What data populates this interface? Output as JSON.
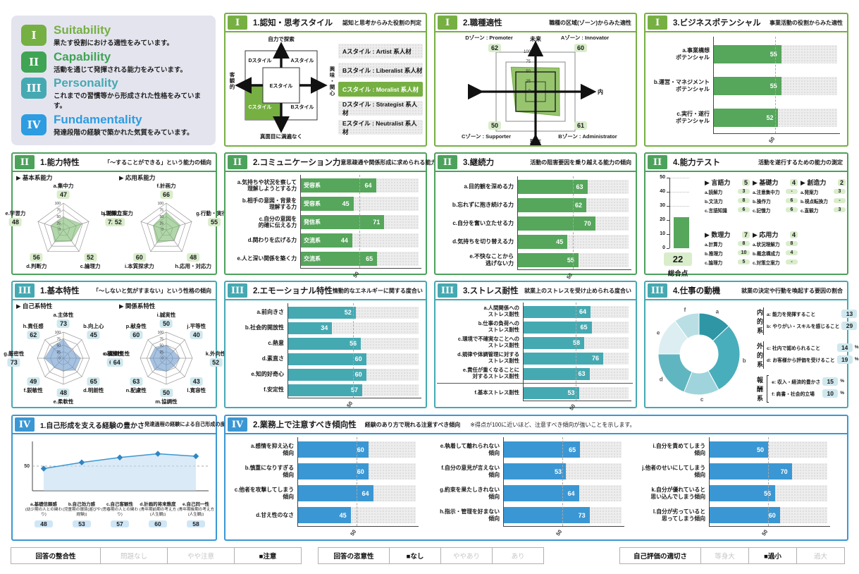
{
  "colors": {
    "cat1": "#76b043",
    "cat2": "#4ca25b",
    "cat3": "#45a9b2",
    "cat4": "#3b97d3",
    "radar_green": "rgba(125,186,113,0.6)",
    "radar_blue": "rgba(108,154,204,0.6)",
    "zone_fill": "#8cbf5e",
    "bar_green": "#56a65c",
    "bar_teal": "#45a9b2",
    "bar_blue": "#3b97d3"
  },
  "legend": {
    "items": [
      {
        "numeral": "I",
        "title": "Suitability",
        "desc": "果たす役割における適性をみています。",
        "color": "#76b043"
      },
      {
        "numeral": "II",
        "title": "Capability",
        "desc": "活動を通じて発揮される能力をみています。",
        "color": "#3fa454"
      },
      {
        "numeral": "III",
        "title": "Personality",
        "desc": "これまでの習慣等から形成された性格をみています。",
        "color": "#45a9b2"
      },
      {
        "numeral": "IV",
        "title": "Fundamentality",
        "desc": "発達段階の経験で築かれた気質をみています。",
        "color": "#2d9ce0"
      }
    ]
  },
  "panels": {
    "i1": {
      "numeral": "I",
      "title": "1.認知・思考スタイル",
      "subtitle": "認知と思考からみた役割の判定",
      "map": {
        "axis_top": "自力で探索",
        "axis_bottom": "真面目に満遍なく",
        "axis_left": "客観的",
        "axis_right": "興味・関心",
        "q_top_left": "Dスタイル",
        "q_top_right": "Aスタイル",
        "q_center": "Eスタイル",
        "q_bottom_left": "Cスタイル",
        "q_bottom_right": "Bスタイル"
      },
      "styles": [
        {
          "label": "Aスタイル : Artist 系人材",
          "selected": false
        },
        {
          "label": "Bスタイル : Liberalist 系人材",
          "selected": false
        },
        {
          "label": "Cスタイル : Moralist 系人材",
          "selected": true
        },
        {
          "label": "Dスタイル : Strategist 系人材",
          "selected": false
        },
        {
          "label": "Eスタイル : Neutralist 系人材",
          "selected": false
        }
      ]
    },
    "i2": {
      "numeral": "I",
      "title": "2.職種適性",
      "subtitle": "職種の区域(ゾーン)からみた適性",
      "axis": {
        "top": "未来",
        "bottom": "現在",
        "left": "外",
        "right": "内"
      },
      "rings": [
        100,
        75,
        50,
        25,
        0
      ],
      "zones": [
        {
          "corner": "top_left",
          "name": "Dゾーン : Promoter",
          "value": 62
        },
        {
          "corner": "top_right",
          "name": "Aゾーン : Innovator",
          "value": 60
        },
        {
          "corner": "bottom_left",
          "name": "Cゾーン : Supporter",
          "value": 50
        },
        {
          "corner": "bottom_right",
          "name": "Bゾーン : Administrator",
          "value": 61
        }
      ]
    },
    "i3": {
      "numeral": "I",
      "title": "3.ビジネスポテンシャル",
      "subtitle": "事業活動の役割からみた適性",
      "ref": 50,
      "bars": [
        {
          "label": [
            "a.事業構想",
            "ポテンシャル"
          ],
          "value": 55
        },
        {
          "label": [
            "b.運営・マネジメント",
            "ポテンシャル"
          ],
          "value": 55
        },
        {
          "label": [
            "c.実行・遂行",
            "ポテンシャル"
          ],
          "value": 52
        }
      ]
    },
    "ii1": {
      "numeral": "II",
      "title": "1.能力特性",
      "subtitle": "「〜することができる」という能力の傾向",
      "scale": [
        100,
        75,
        50,
        25,
        0
      ],
      "left": {
        "tag": "▶ 基本系能力",
        "axes": [
          {
            "label": "a.集中力",
            "value": 47
          },
          {
            "label": "b.理解力",
            "value": 72
          },
          {
            "label": "c.論理力",
            "value": 52
          },
          {
            "label": "d.判断力",
            "value": 56
          },
          {
            "label": "e.学習力",
            "value": 48
          }
        ]
      },
      "right": {
        "tag": "▶ 応用系能力",
        "axes": [
          {
            "label": "f.計画力",
            "value": 66
          },
          {
            "label": "g.行動・実行力",
            "value": 55
          },
          {
            "label": "h.応用・対応力",
            "value": 48
          },
          {
            "label": "i.本質探求力",
            "value": 60
          },
          {
            "label": "j.対策立案力",
            "value": 52
          }
        ]
      }
    },
    "ii2": {
      "numeral": "II",
      "title": "2.コミュニケーション力",
      "subtitle": "意思疎通や関係形成に求められる能力の傾向",
      "ref": 50,
      "bars": [
        {
          "label": [
            "a.気持ちや状況を察して",
            "理解しようとする力"
          ],
          "tag": "受容系",
          "value": 64
        },
        {
          "label": [
            "b.相手の意図・背景を",
            "理解する力"
          ],
          "tag": "受容系",
          "value": 45
        },
        {
          "label": [
            "c.自分の意図を",
            "的確に伝える力"
          ],
          "tag": "発信系",
          "value": 71
        },
        {
          "label": [
            "d.関わりを広げる力"
          ],
          "tag": "交流系",
          "value": 44
        },
        {
          "label": [
            "e.人と深い関係を築く力"
          ],
          "tag": "交流系",
          "value": 65
        }
      ]
    },
    "ii3": {
      "numeral": "II",
      "title": "3.継続力",
      "subtitle": "活動の阻害要因を乗り越える能力の傾向",
      "ref": 50,
      "bars": [
        {
          "label": [
            "a.目的観を深める力"
          ],
          "value": 63
        },
        {
          "label": [
            "b.忘れずに抱き続ける力"
          ],
          "value": 62
        },
        {
          "label": [
            "c.自分を奮い立たせる力"
          ],
          "value": 70
        },
        {
          "label": [
            "d.気持ちを切り替える力"
          ],
          "value": 45
        },
        {
          "label": [
            "e.不快なことから",
            "逃げない力"
          ],
          "value": 55
        }
      ]
    },
    "ii4": {
      "numeral": "II",
      "title": "4.能力テスト",
      "subtitle": "活動を遂行するための能力の測定",
      "total": {
        "value": 22,
        "max": 50,
        "ticks": [
          50,
          40,
          30,
          20,
          10,
          0
        ],
        "label": "総合点"
      },
      "groups": [
        {
          "name": "▶ 言語力",
          "score": "5",
          "items": [
            {
              "name": "a.読解力",
              "score": "3"
            },
            {
              "name": "b.文法力",
              "score": "8"
            },
            {
              "name": "c.言語知識",
              "score": "6"
            }
          ]
        },
        {
          "name": "▶ 基礎力",
          "score": "4",
          "items": [
            {
              "name": "a.注意集中力",
              "score": "-"
            },
            {
              "name": "b.操作力",
              "score": "6"
            },
            {
              "name": "c.記憶力",
              "score": "6"
            }
          ]
        },
        {
          "name": "▶ 創造力",
          "score": "2",
          "items": [
            {
              "name": "a.発案力",
              "score": "3"
            },
            {
              "name": "b.視点転換力",
              "score": "-"
            },
            {
              "name": "c.直観力",
              "score": "3"
            }
          ]
        },
        {
          "name": "▶ 数理力",
          "score": "7",
          "items": [
            {
              "name": "a.計算力",
              "score": "8"
            },
            {
              "name": "b.推理力",
              "score": "10"
            },
            {
              "name": "c.論理力",
              "score": "5"
            }
          ]
        },
        {
          "name": "▶ 応用力",
          "score": "4",
          "items": [
            {
              "name": "a.状況理解力",
              "score": "8"
            },
            {
              "name": "b.概念構成力",
              "score": "4"
            },
            {
              "name": "c.対策立案力",
              "score": "-"
            }
          ]
        }
      ]
    },
    "iii1": {
      "numeral": "III",
      "title": "1.基本特性",
      "subtitle": "「〜しないと気がすまない」という性格の傾向",
      "scale": [
        100,
        75,
        50,
        25,
        0
      ],
      "left": {
        "tag": "▶ 自己系特性",
        "axes": [
          {
            "label": "a.主体性",
            "value": 73
          },
          {
            "label": "b.向上心",
            "value": 45
          },
          {
            "label": "c.積極性",
            "value": 66
          },
          {
            "label": "d.明朗性",
            "value": 65
          },
          {
            "label": "e.柔軟性",
            "value": 48
          },
          {
            "label": "f.鋭敏性",
            "value": 49
          },
          {
            "label": "g.厳密性",
            "value": 73
          },
          {
            "label": "h.責任感",
            "value": 62
          }
        ]
      },
      "right": {
        "tag": "▶ 関係系特性",
        "axes": [
          {
            "label": "i.誠実性",
            "value": 50
          },
          {
            "label": "j.平等性",
            "value": 40
          },
          {
            "label": "k.外向性",
            "value": 52
          },
          {
            "label": "l.寛容性",
            "value": 43
          },
          {
            "label": "m.協調性",
            "value": 50
          },
          {
            "label": "n.配慮性",
            "value": 63
          },
          {
            "label": "o.面倒見性",
            "value": 64
          },
          {
            "label": "p.献身性",
            "value": 60
          }
        ]
      }
    },
    "iii2": {
      "numeral": "III",
      "title": "2.エモーショナル特性",
      "subtitle": "情動的なエネルギーに関する度合い",
      "ref": 50,
      "bars": [
        {
          "label": [
            "a.前向きさ"
          ],
          "value": 52
        },
        {
          "label": [
            "b.社会的開放性"
          ],
          "value": 34
        },
        {
          "label": [
            "c.熱意"
          ],
          "value": 56
        },
        {
          "label": [
            "d.素直さ"
          ],
          "value": 60
        },
        {
          "label": [
            "e.知的好奇心"
          ],
          "value": 60
        },
        {
          "label": [
            "f.安定性"
          ],
          "value": 57
        }
      ]
    },
    "iii3": {
      "numeral": "III",
      "title": "3.ストレス耐性",
      "subtitle": "就業上のストレスを受け止められる度合い",
      "ref": 50,
      "bars": [
        {
          "label": [
            "a.人間関係への",
            "ストレス耐性"
          ],
          "value": 64
        },
        {
          "label": [
            "b.仕事の負荷への",
            "ストレス耐性"
          ],
          "value": 65
        },
        {
          "label": [
            "c.環境で不確実なことへの",
            "ストレス耐性"
          ],
          "value": 58
        },
        {
          "label": [
            "d.規律や体調管理に対する",
            "ストレス耐性"
          ],
          "value": 76
        },
        {
          "label": [
            "e.責任が重くなることに",
            "対するストレス耐性"
          ],
          "value": 63
        },
        {
          "label": [
            "f.基本ストレス耐性"
          ],
          "value": 53,
          "divider_before": true
        }
      ]
    },
    "iii4": {
      "numeral": "III",
      "title": "4.仕事の動機",
      "subtitle": "就業の決定や行動を喚起する要因の割合",
      "segments": [
        {
          "id": "a",
          "value": 13,
          "color": "#2e96a5"
        },
        {
          "id": "b",
          "value": 29,
          "color": "#49aebb"
        },
        {
          "id": "c",
          "value": 14,
          "color": "#9fd4dc"
        },
        {
          "id": "d",
          "value": 19,
          "color": "#5fb6c1"
        },
        {
          "id": "e",
          "value": 15,
          "color": "#dceef1"
        },
        {
          "id": "f",
          "value": 10,
          "color": "#b9dfe5"
        }
      ],
      "motives": [
        {
          "group": "内的系",
          "items": [
            {
              "letter": "a:",
              "text": "能力を発揮すること",
              "value": 13,
              "unit": "%"
            },
            {
              "letter": "b:",
              "text": "やりがい・スキルを感じること",
              "value": 29,
              "unit": "%"
            }
          ]
        },
        {
          "group": "外的系",
          "items": [
            {
              "letter": "c:",
              "text": "社内で認められること",
              "value": 14,
              "unit": "%"
            },
            {
              "letter": "d:",
              "text": "お客様から評価を受けること",
              "value": 19,
              "unit": "%"
            }
          ]
        },
        {
          "group": "報酬系",
          "items": [
            {
              "letter": "e:",
              "text": "収入・経済的豊かさ",
              "value": 15,
              "unit": "%"
            },
            {
              "letter": "f:",
              "text": "肩書・社会的立場",
              "value": 10,
              "unit": "%"
            }
          ]
        }
      ]
    },
    "iv1": {
      "numeral": "IV",
      "title": "1.自己形成を支える経験の豊かさ",
      "subtitle": "発達過程の経験による自己形成の度合い",
      "ref": 50,
      "points": [
        {
          "name": "a.基礎信頼感",
          "desc": "(幼少期の人との関わり)",
          "value": 48
        },
        {
          "name": "b.自己効力感",
          "desc": "(児童期の環境(遊びや経験))",
          "value": 53
        },
        {
          "name": "c.自己客観性",
          "desc": "(思春期の人との関わり)",
          "value": 57
        },
        {
          "name": "d.計画的将来態度",
          "desc": "(青年期前期の考え方(人生観))",
          "value": 60
        },
        {
          "name": "e.自己同一性",
          "desc": "(青年期後期の考え方(人生観))",
          "value": 58
        }
      ]
    },
    "iv2": {
      "numeral": "IV",
      "title": "2.業務上で注意すべき傾向性",
      "subtitle": "経験のあり方で現れる注意すべき傾向",
      "note": "※得点が100に近いほど、注意すべき傾向が強いことを示します。",
      "ref": 50,
      "columns": [
        [
          {
            "label": [
              "a.感情を抑え込む",
              "傾向"
            ],
            "value": 60
          },
          {
            "label": [
              "b.慎重になりすぎる",
              "傾向"
            ],
            "value": 60
          },
          {
            "label": [
              "c.他者を攻撃してしまう",
              "傾向"
            ],
            "value": 64
          },
          {
            "label": [
              "d.甘え性のなさ"
            ],
            "value": 45
          }
        ],
        [
          {
            "label": [
              "e.執着して離れられない",
              "傾向"
            ],
            "value": 65
          },
          {
            "label": [
              "f.自分の意見が言えない",
              "傾向"
            ],
            "value": 53
          },
          {
            "label": [
              "g.約束を果たしきれない",
              "傾向"
            ],
            "value": 64
          },
          {
            "label": [
              "h.指示・管理を好まない",
              "傾向"
            ],
            "value": 73
          }
        ],
        [
          {
            "label": [
              "i.自分を責めてしまう",
              "傾向"
            ],
            "value": 50
          },
          {
            "label": [
              "j.他者のせいにしてしまう",
              "傾向"
            ],
            "value": 70
          },
          {
            "label": [
              "k.自分が優れていると",
              "思い込んでしまう傾向"
            ],
            "value": 56
          },
          {
            "label": [
              "l.自分が劣っていると",
              "思ってしまう傾向"
            ],
            "value": 60
          }
        ]
      ]
    }
  },
  "footer": {
    "marker": "■",
    "groups": [
      {
        "title": "回答の整合性",
        "options": [
          "問題なし",
          "やや注意",
          "注意"
        ],
        "selected": 2
      },
      {
        "title": "回答の恣意性",
        "options": [
          "なし",
          "ややあり",
          "あり"
        ],
        "selected": 0
      },
      {
        "title": "自己評価の適切さ",
        "options": [
          "等身大",
          "過小",
          "過大"
        ],
        "selected": 1
      }
    ]
  }
}
